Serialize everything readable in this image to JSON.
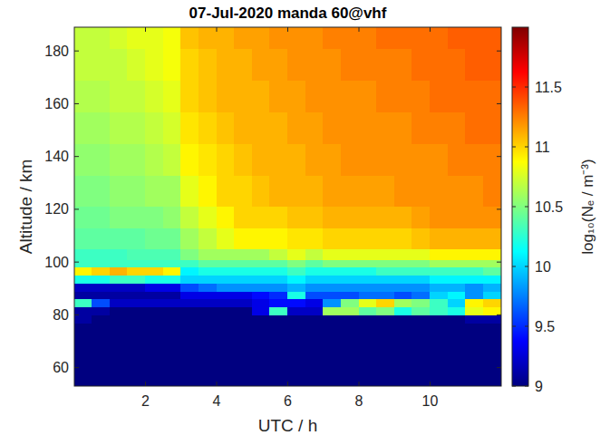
{
  "chart_data": {
    "type": "heatmap",
    "title": "07-Jul-2020 manda 60@vhf",
    "x_label": "UTC / h",
    "y_label": "Altitude / km",
    "xlim": [
      0,
      12
    ],
    "ylim": [
      53,
      189
    ],
    "xticks": [
      2,
      4,
      6,
      8,
      10
    ],
    "yticks": [
      60,
      80,
      100,
      120,
      140,
      160,
      180
    ],
    "x_edges": [
      0,
      0.5,
      1,
      1.5,
      2,
      2.5,
      3,
      3.5,
      4,
      4.5,
      5,
      5.5,
      6,
      6.5,
      7,
      7.5,
      8,
      8.5,
      9,
      9.5,
      10,
      10.5,
      11,
      11.5,
      12
    ],
    "y_edges": [
      53,
      61,
      69,
      77,
      80,
      83,
      86,
      89,
      92,
      95,
      98,
      101,
      105,
      113,
      121,
      133,
      145,
      157,
      169,
      181,
      189
    ],
    "values": [
      [
        9,
        9,
        9,
        9,
        9,
        9,
        9,
        9,
        9,
        9,
        9,
        9,
        9,
        9,
        9,
        9,
        9,
        9,
        9,
        9,
        9,
        9,
        9,
        9
      ],
      [
        9,
        9,
        9,
        9,
        9,
        9,
        9,
        9,
        9,
        9,
        9,
        9,
        9,
        9,
        9,
        9,
        9,
        9,
        9,
        9,
        9,
        9,
        9,
        9
      ],
      [
        9,
        9,
        9,
        9,
        9,
        9,
        9,
        9,
        9,
        9,
        9,
        9,
        9,
        9,
        9,
        9,
        9,
        9,
        9,
        9,
        9,
        9,
        9,
        9
      ],
      [
        9.1,
        9,
        9,
        9,
        9,
        9,
        9,
        9,
        9,
        9,
        9,
        9,
        9,
        9,
        9,
        9,
        9,
        9,
        9,
        9,
        9,
        9,
        9.1,
        9.1
      ],
      [
        9.1,
        9.1,
        9,
        9,
        9,
        9,
        9,
        9,
        9,
        9,
        9.3,
        10.3,
        9.2,
        9.2,
        10.6,
        10.6,
        10.4,
        10.5,
        10.2,
        10.4,
        10.3,
        10.2,
        10.8,
        10.9
      ],
      [
        10.3,
        9.6,
        9.2,
        9.2,
        9.2,
        9.2,
        9.2,
        9.2,
        9.2,
        9.2,
        9.3,
        9.4,
        9.4,
        9.3,
        9.8,
        10.5,
        10.8,
        11.0,
        10.6,
        10.5,
        10.3,
        10.0,
        10.9,
        11.0
      ],
      [
        9.1,
        9.1,
        9.1,
        9.1,
        9.1,
        9.1,
        9.3,
        9.3,
        9.3,
        9.3,
        9.4,
        9.5,
        10.2,
        9.6,
        9.6,
        9.6,
        9.7,
        9.7,
        9.6,
        9.7,
        10.0,
        10.1,
        9.8,
        10.0
      ],
      [
        9.2,
        9.2,
        9.2,
        9.2,
        9.3,
        9.3,
        9.6,
        9.7,
        9.8,
        9.8,
        9.8,
        9.8,
        9.9,
        9.8,
        9.8,
        9.8,
        9.8,
        9.8,
        9.8,
        9.8,
        9.9,
        9.9,
        9.8,
        9.9
      ],
      [
        10.2,
        10.2,
        10.3,
        10.3,
        10.2,
        10.2,
        10.0,
        10.0,
        10.0,
        10.0,
        10.0,
        10.0,
        10.1,
        10.0,
        10.0,
        10.0,
        10.0,
        10.0,
        10.0,
        10.0,
        10.1,
        10.1,
        10.1,
        10.1
      ],
      [
        10.9,
        11.0,
        11.1,
        11.0,
        11.0,
        10.9,
        10.1,
        10.2,
        10.2,
        10.2,
        10.2,
        10.2,
        10.3,
        10.2,
        10.2,
        10.2,
        10.2,
        10.3,
        10.3,
        10.3,
        10.3,
        10.3,
        10.3,
        10.4
      ],
      [
        10.3,
        10.3,
        10.3,
        10.3,
        10.3,
        10.3,
        10.3,
        10.4,
        10.4,
        10.4,
        10.4,
        10.4,
        10.5,
        10.4,
        10.5,
        10.5,
        10.5,
        10.5,
        10.5,
        10.5,
        10.6,
        10.6,
        10.6,
        10.6
      ],
      [
        10.3,
        10.3,
        10.3,
        10.35,
        10.35,
        10.35,
        10.5,
        10.6,
        10.6,
        10.6,
        10.6,
        10.7,
        10.8,
        10.7,
        10.8,
        10.8,
        10.8,
        10.8,
        10.8,
        10.8,
        10.9,
        10.9,
        10.9,
        10.9
      ],
      [
        10.4,
        10.4,
        10.4,
        10.4,
        10.45,
        10.45,
        10.6,
        10.7,
        10.8,
        10.9,
        10.9,
        10.9,
        10.95,
        10.95,
        11.0,
        11.0,
        11.0,
        11.0,
        11.0,
        11.05,
        11.1,
        11.1,
        11.1,
        11.1
      ],
      [
        10.45,
        10.45,
        10.5,
        10.5,
        10.5,
        10.55,
        10.7,
        10.8,
        10.9,
        11.0,
        11.0,
        11.0,
        11.05,
        11.05,
        11.1,
        11.1,
        11.1,
        11.1,
        11.1,
        11.15,
        11.2,
        11.2,
        11.2,
        11.2
      ],
      [
        10.5,
        10.5,
        10.55,
        10.55,
        10.6,
        10.6,
        10.8,
        10.9,
        11.0,
        11.0,
        11.05,
        11.1,
        11.1,
        11.1,
        11.15,
        11.15,
        11.15,
        11.15,
        11.2,
        11.2,
        11.2,
        11.2,
        11.2,
        11.25
      ],
      [
        10.55,
        10.55,
        10.6,
        10.6,
        10.65,
        10.7,
        10.9,
        10.95,
        11.0,
        11.05,
        11.1,
        11.1,
        11.1,
        11.15,
        11.15,
        11.2,
        11.2,
        11.2,
        11.2,
        11.2,
        11.2,
        11.25,
        11.25,
        11.25
      ],
      [
        10.6,
        10.6,
        10.65,
        10.65,
        10.7,
        10.75,
        10.95,
        11.0,
        11.05,
        11.1,
        11.1,
        11.1,
        11.15,
        11.15,
        11.2,
        11.2,
        11.2,
        11.2,
        11.2,
        11.25,
        11.25,
        11.25,
        11.3,
        11.3
      ],
      [
        10.65,
        10.65,
        10.7,
        10.7,
        10.75,
        10.8,
        11.0,
        11.05,
        11.1,
        11.1,
        11.1,
        11.15,
        11.15,
        11.2,
        11.2,
        11.2,
        11.2,
        11.25,
        11.25,
        11.25,
        11.3,
        11.3,
        11.3,
        11.3
      ],
      [
        10.7,
        10.7,
        10.7,
        10.75,
        10.8,
        10.85,
        11.0,
        11.05,
        11.1,
        11.1,
        11.15,
        11.15,
        11.2,
        11.2,
        11.2,
        11.25,
        11.25,
        11.25,
        11.25,
        11.3,
        11.3,
        11.3,
        11.35,
        11.35
      ],
      [
        10.7,
        10.7,
        10.75,
        10.8,
        10.8,
        10.85,
        11.05,
        11.1,
        11.1,
        11.15,
        11.15,
        11.2,
        11.2,
        11.2,
        11.25,
        11.25,
        11.25,
        11.3,
        11.3,
        11.3,
        11.3,
        11.35,
        11.35,
        11.35
      ]
    ],
    "colorbar": {
      "label": "log₁₀(Nₑ / m⁻³)",
      "range": [
        9,
        12
      ],
      "ticks": [
        9,
        9.5,
        10,
        10.5,
        11,
        11.5
      ]
    }
  }
}
